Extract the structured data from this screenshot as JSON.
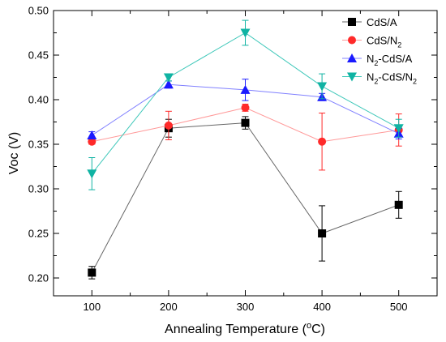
{
  "chart_data": {
    "type": "line",
    "xlabel": {
      "main": "Annealing Temperature (",
      "sup": "o",
      "unit": "C)"
    },
    "ylabel": "Voc (V)",
    "x": [
      100,
      200,
      300,
      400,
      500
    ],
    "xlim": [
      50,
      550
    ],
    "ylim": [
      0.18,
      0.5
    ],
    "xticks": [
      "100",
      "200",
      "300",
      "400",
      "500"
    ],
    "yticks": [
      "0.20",
      "0.25",
      "0.30",
      "0.35",
      "0.40",
      "0.45",
      "0.50"
    ],
    "legend_position": "top-right",
    "series": [
      {
        "name": "CdS/A",
        "label_parts": [
          {
            "t": "CdS/A"
          }
        ],
        "color": "#000000",
        "line_color": "#666666",
        "marker": "square",
        "values": [
          0.206,
          0.368,
          0.374,
          0.25,
          0.282
        ],
        "errors": [
          0.007,
          0.01,
          0.007,
          0.031,
          0.015
        ]
      },
      {
        "name": "CdS/N2",
        "label_parts": [
          {
            "t": "CdS/N"
          },
          {
            "t": "2",
            "sub": true
          }
        ],
        "color": "#ff2a2a",
        "line_color": "#ff9999",
        "marker": "circle",
        "values": [
          0.353,
          0.371,
          0.391,
          0.353,
          0.366
        ],
        "errors": [
          0.003,
          0.016,
          0.004,
          0.032,
          0.018
        ]
      },
      {
        "name": "N2-CdS/A",
        "label_parts": [
          {
            "t": "N"
          },
          {
            "t": "2",
            "sub": true
          },
          {
            "t": "-CdS/A"
          }
        ],
        "color": "#1a1aff",
        "line_color": "#8080ff",
        "marker": "triangle-up",
        "values": [
          0.36,
          0.417,
          0.411,
          0.403,
          0.362
        ],
        "errors": [
          0.004,
          0.004,
          0.012,
          0.004,
          0.006
        ]
      },
      {
        "name": "N2-CdS/N2",
        "label_parts": [
          {
            "t": "N"
          },
          {
            "t": "2",
            "sub": true
          },
          {
            "t": "-CdS/N"
          },
          {
            "t": "2",
            "sub": true
          }
        ],
        "color": "#10b3a3",
        "line_color": "#40c8ba",
        "marker": "triangle-down",
        "values": [
          0.317,
          0.425,
          0.475,
          0.415,
          0.368
        ],
        "errors": [
          0.018,
          0.004,
          0.014,
          0.014,
          0.01
        ]
      }
    ]
  }
}
